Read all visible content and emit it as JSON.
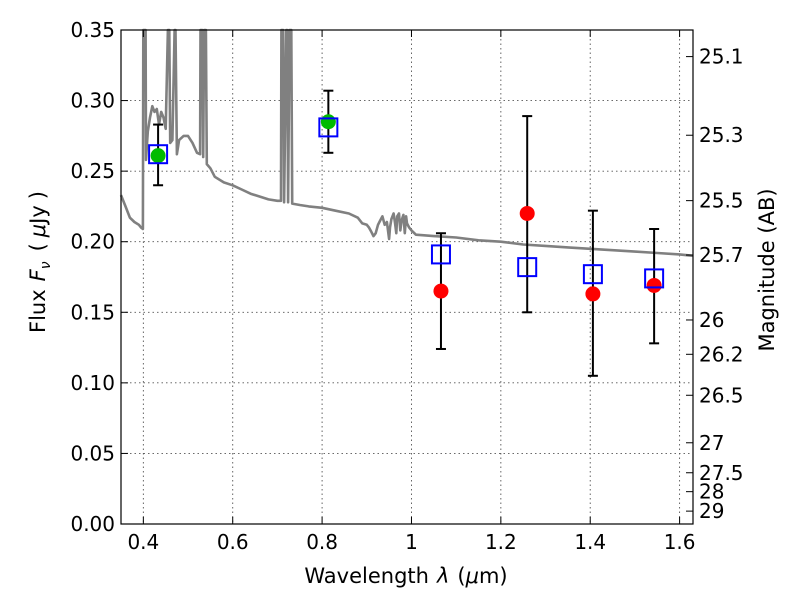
{
  "chart_data": {
    "type": "scatter",
    "xlabel_text": "Wavelength",
    "xlabel_symbol": "λ",
    "xlabel_unit_open": "(",
    "xlabel_unit_mu": "μ",
    "xlabel_unit_rest": "m)",
    "ylabel_text": "Flux",
    "ylabel_symbol": "F",
    "ylabel_subscript": "ν",
    "ylabel_unit_open": "(",
    "ylabel_unit_mu": "μ",
    "ylabel_unit_rest": "Jy",
    "ylabel_unit_close": ")",
    "y2label": "Magnitude (AB)",
    "xlim": [
      0.35,
      1.63
    ],
    "ylim": [
      0.0,
      0.35
    ],
    "grid": true,
    "x_ticks": [
      0.4,
      0.6,
      0.8,
      1.0,
      1.2,
      1.4,
      1.6
    ],
    "x_tick_labels": [
      "0.4",
      "0.6",
      "0.8",
      "1",
      "1.2",
      "1.4",
      "1.6"
    ],
    "y_ticks": [
      0.0,
      0.05,
      0.1,
      0.15,
      0.2,
      0.25,
      0.3,
      0.35
    ],
    "y_tick_labels": [
      "0.00",
      "0.05",
      "0.10",
      "0.15",
      "0.20",
      "0.25",
      "0.30",
      "0.35"
    ],
    "mag_ticks": [
      25.1,
      25.3,
      25.5,
      25.7,
      26,
      26.2,
      26.5,
      27,
      27.5,
      28,
      29
    ],
    "mag_tick_labels": [
      "25.1",
      "25.3",
      "25.5",
      "25.7",
      "26",
      "26.2",
      "26.5",
      "27",
      "27.5",
      "28",
      "29"
    ],
    "colors": {
      "spectrum": "#808080",
      "observed_green": "#00bb00",
      "observed_red": "#ff0000",
      "model_box": "#0000ff",
      "errorbar": "#000000"
    },
    "series": [
      {
        "kind": "spectrum",
        "points": [
          [
            0.35,
            0.233
          ],
          [
            0.36,
            0.225
          ],
          [
            0.37,
            0.217
          ],
          [
            0.38,
            0.214
          ],
          [
            0.39,
            0.212
          ],
          [
            0.395,
            0.21
          ],
          [
            0.399,
            0.209
          ],
          [
            0.4,
            0.35
          ],
          [
            0.405,
            0.35
          ],
          [
            0.406,
            0.258
          ],
          [
            0.41,
            0.278
          ],
          [
            0.415,
            0.288
          ],
          [
            0.42,
            0.296
          ],
          [
            0.425,
            0.292
          ],
          [
            0.43,
            0.294
          ],
          [
            0.435,
            0.283
          ],
          [
            0.44,
            0.292
          ],
          [
            0.445,
            0.288
          ],
          [
            0.45,
            0.28
          ],
          [
            0.455,
            0.35
          ],
          [
            0.458,
            0.35
          ],
          [
            0.46,
            0.27
          ],
          [
            0.465,
            0.272
          ],
          [
            0.47,
            0.35
          ],
          [
            0.472,
            0.35
          ],
          [
            0.475,
            0.262
          ],
          [
            0.48,
            0.272
          ],
          [
            0.49,
            0.275
          ],
          [
            0.5,
            0.275
          ],
          [
            0.51,
            0.27
          ],
          [
            0.52,
            0.263
          ],
          [
            0.527,
            0.262
          ],
          [
            0.528,
            0.35
          ],
          [
            0.532,
            0.35
          ],
          [
            0.534,
            0.26
          ],
          [
            0.536,
            0.35
          ],
          [
            0.54,
            0.35
          ],
          [
            0.542,
            0.255
          ],
          [
            0.55,
            0.252
          ],
          [
            0.56,
            0.246
          ],
          [
            0.58,
            0.242
          ],
          [
            0.6,
            0.24
          ],
          [
            0.62,
            0.237
          ],
          [
            0.64,
            0.234
          ],
          [
            0.66,
            0.232
          ],
          [
            0.68,
            0.23
          ],
          [
            0.7,
            0.229
          ],
          [
            0.708,
            0.229
          ],
          [
            0.709,
            0.35
          ],
          [
            0.713,
            0.35
          ],
          [
            0.715,
            0.228
          ],
          [
            0.72,
            0.35
          ],
          [
            0.722,
            0.35
          ],
          [
            0.724,
            0.228
          ],
          [
            0.727,
            0.35
          ],
          [
            0.731,
            0.35
          ],
          [
            0.733,
            0.227
          ],
          [
            0.75,
            0.226
          ],
          [
            0.77,
            0.225
          ],
          [
            0.8,
            0.224
          ],
          [
            0.83,
            0.222
          ],
          [
            0.86,
            0.22
          ],
          [
            0.88,
            0.217
          ],
          [
            0.89,
            0.213
          ],
          [
            0.9,
            0.212
          ],
          [
            0.905,
            0.21
          ],
          [
            0.91,
            0.207
          ],
          [
            0.915,
            0.204
          ],
          [
            0.92,
            0.206
          ],
          [
            0.925,
            0.212
          ],
          [
            0.93,
            0.215
          ],
          [
            0.935,
            0.218
          ],
          [
            0.94,
            0.212
          ],
          [
            0.945,
            0.214
          ],
          [
            0.95,
            0.202
          ],
          [
            0.952,
            0.21
          ],
          [
            0.955,
            0.216
          ],
          [
            0.96,
            0.22
          ],
          [
            0.963,
            0.214
          ],
          [
            0.966,
            0.206
          ],
          [
            0.968,
            0.218
          ],
          [
            0.972,
            0.22
          ],
          [
            0.975,
            0.208
          ],
          [
            0.978,
            0.215
          ],
          [
            0.982,
            0.219
          ],
          [
            0.985,
            0.206
          ],
          [
            0.988,
            0.218
          ],
          [
            0.99,
            0.213
          ],
          [
            0.995,
            0.21
          ],
          [
            1.0,
            0.208
          ],
          [
            1.01,
            0.205
          ],
          [
            1.05,
            0.204
          ],
          [
            1.1,
            0.203
          ],
          [
            1.15,
            0.201
          ],
          [
            1.2,
            0.2
          ],
          [
            1.25,
            0.198
          ],
          [
            1.3,
            0.197
          ],
          [
            1.35,
            0.196
          ],
          [
            1.4,
            0.195
          ],
          [
            1.45,
            0.194
          ],
          [
            1.5,
            0.193
          ],
          [
            1.55,
            0.192
          ],
          [
            1.6,
            0.191
          ],
          [
            1.63,
            0.19
          ]
        ]
      },
      {
        "kind": "observed",
        "points": [
          {
            "x": 0.433,
            "y": 0.261,
            "err_lo": 0.24,
            "err_hi": 0.283,
            "color_key": "observed_green"
          },
          {
            "x": 0.814,
            "y": 0.285,
            "err_lo": 0.263,
            "err_hi": 0.307,
            "color_key": "observed_green"
          },
          {
            "x": 1.066,
            "y": 0.165,
            "err_lo": 0.124,
            "err_hi": 0.206,
            "color_key": "observed_red"
          },
          {
            "x": 1.259,
            "y": 0.22,
            "err_lo": 0.15,
            "err_hi": 0.289,
            "color_key": "observed_red"
          },
          {
            "x": 1.406,
            "y": 0.163,
            "err_lo": 0.105,
            "err_hi": 0.222,
            "color_key": "observed_red"
          },
          {
            "x": 1.543,
            "y": 0.169,
            "err_lo": 0.128,
            "err_hi": 0.209,
            "color_key": "observed_red"
          }
        ]
      },
      {
        "kind": "model",
        "points": [
          {
            "x": 0.433,
            "y": 0.262
          },
          {
            "x": 0.814,
            "y": 0.281
          },
          {
            "x": 1.066,
            "y": 0.191
          },
          {
            "x": 1.259,
            "y": 0.182
          },
          {
            "x": 1.406,
            "y": 0.177
          },
          {
            "x": 1.543,
            "y": 0.174
          }
        ]
      }
    ]
  }
}
